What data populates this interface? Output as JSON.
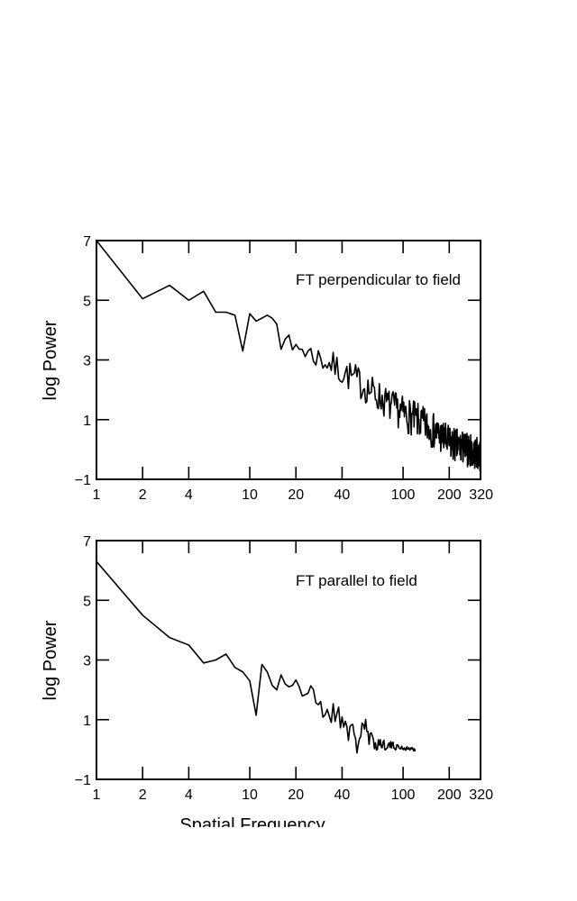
{
  "chart_data": [
    {
      "type": "line",
      "annotation": "FT perpendicular to field",
      "ylabel": "log Power",
      "xlabel": "Spatial Frequency",
      "xscale": "log",
      "xlim": [
        1,
        320
      ],
      "ylim": [
        -1,
        7
      ],
      "x_ticks": [
        1,
        2,
        4,
        10,
        20,
        40,
        100,
        200,
        320
      ],
      "x_tick_labels": [
        "1",
        "2",
        "4",
        "10",
        "20",
        "40",
        "100",
        "200",
        "320"
      ],
      "y_ticks": [
        -1,
        1,
        3,
        5,
        7
      ],
      "y_tick_labels": [
        "−1",
        "1",
        "3",
        "5",
        "7"
      ],
      "series_summary": {
        "anchors_x": [
          1,
          2,
          3,
          4,
          5,
          6,
          7,
          8,
          9,
          10,
          11,
          12,
          13,
          14,
          15,
          16,
          17,
          18,
          19,
          20,
          25,
          30,
          40,
          50,
          60,
          80,
          100,
          150,
          200,
          320
        ],
        "anchors_y": [
          7.0,
          5.05,
          5.5,
          5.0,
          5.3,
          4.6,
          4.6,
          4.5,
          3.3,
          4.55,
          4.3,
          4.4,
          4.5,
          4.4,
          4.2,
          3.7,
          4.0,
          3.5,
          3.2,
          3.5,
          3.2,
          3.0,
          2.6,
          2.3,
          2.0,
          1.5,
          1.2,
          0.7,
          0.2,
          -0.2
        ],
        "noise_amplitude": [
          0,
          0,
          0,
          0,
          0,
          0,
          0,
          0,
          0,
          0,
          0,
          0,
          0,
          0,
          0,
          0.35,
          0.35,
          0.35,
          0.35,
          0.4,
          0.4,
          0.45,
          0.5,
          0.55,
          0.55,
          0.55,
          0.6,
          0.6,
          0.6,
          0.55
        ],
        "seed": 7
      }
    },
    {
      "type": "line",
      "annotation": "FT parallel to field",
      "ylabel": "log Power",
      "xlabel": "Spatial Frequency",
      "xscale": "log",
      "xlim": [
        1,
        320
      ],
      "ylim": [
        -1,
        7
      ],
      "x_ticks": [
        1,
        2,
        4,
        10,
        20,
        40,
        100,
        200,
        320
      ],
      "x_tick_labels": [
        "1",
        "2",
        "4",
        "10",
        "20",
        "40",
        "100",
        "200",
        "320"
      ],
      "y_ticks": [
        -1,
        1,
        3,
        5,
        7
      ],
      "y_tick_labels": [
        "−1",
        "1",
        "3",
        "5",
        "7"
      ],
      "series_summary": {
        "anchors_x": [
          1,
          2,
          3,
          4,
          5,
          6,
          7,
          8,
          9,
          10,
          11,
          12,
          13,
          14,
          15,
          16,
          17,
          18,
          19,
          20,
          22,
          25,
          30,
          35,
          40,
          45,
          50,
          55,
          60,
          70,
          80,
          100,
          120
        ],
        "anchors_y": [
          6.3,
          4.5,
          3.75,
          3.5,
          2.9,
          3.0,
          3.2,
          2.75,
          2.6,
          2.3,
          1.15,
          2.85,
          2.6,
          2.15,
          2.0,
          2.5,
          2.2,
          2.1,
          2.15,
          2.35,
          1.9,
          1.9,
          1.3,
          1.2,
          1.1,
          0.6,
          0.2,
          0.9,
          0.3,
          0.2,
          0.15,
          0.05,
          0.0
        ],
        "noise_amplitude": [
          0,
          0,
          0,
          0,
          0,
          0,
          0,
          0,
          0,
          0,
          0,
          0,
          0,
          0,
          0,
          0,
          0,
          0,
          0,
          0.15,
          0.25,
          0.3,
          0.35,
          0.4,
          0.45,
          0.5,
          0.5,
          0.45,
          0.35,
          0.25,
          0.15,
          0.08,
          0.05
        ],
        "seed": 21
      }
    }
  ]
}
